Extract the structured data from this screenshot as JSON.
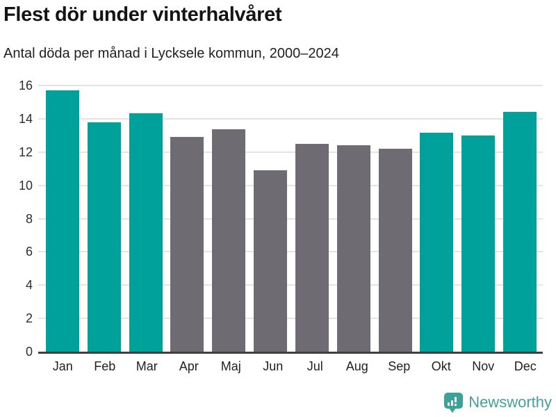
{
  "header": {
    "title": "Flest dör under vinterhalvåret",
    "subtitle": "Antal döda per månad i Lycksele kommun, 2000–2024"
  },
  "chart_data": {
    "type": "bar",
    "title": "Flest dör under vinterhalvåret",
    "subtitle": "Antal döda per månad i Lycksele kommun, 2000–2024",
    "categories": [
      "Jan",
      "Feb",
      "Mar",
      "Apr",
      "Maj",
      "Jun",
      "Jul",
      "Aug",
      "Sep",
      "Okt",
      "Nov",
      "Dec"
    ],
    "values": [
      15.7,
      13.8,
      14.35,
      12.9,
      13.35,
      10.9,
      12.5,
      12.4,
      12.2,
      13.15,
      13.0,
      14.4
    ],
    "bar_colors": [
      "#00a19a",
      "#00a19a",
      "#00a19a",
      "#6e6c72",
      "#6e6c72",
      "#6e6c72",
      "#6e6c72",
      "#6e6c72",
      "#6e6c72",
      "#00a19a",
      "#00a19a",
      "#00a19a"
    ],
    "highlight_color": "#00a19a",
    "muted_color": "#6e6c72",
    "xlabel": "",
    "ylabel": "",
    "ylim": [
      0,
      16
    ],
    "yticks": [
      0,
      2,
      4,
      6,
      8,
      10,
      12,
      14,
      16
    ],
    "grid": true,
    "gridline_color": "#e4e4e4",
    "axis_line_color": "#3f3f3f",
    "legend": "none"
  },
  "footer": {
    "brand": "Newsworthy",
    "brand_color": "#46a09a",
    "logo_icon": "speech-bubble-bar-chart-icon"
  }
}
